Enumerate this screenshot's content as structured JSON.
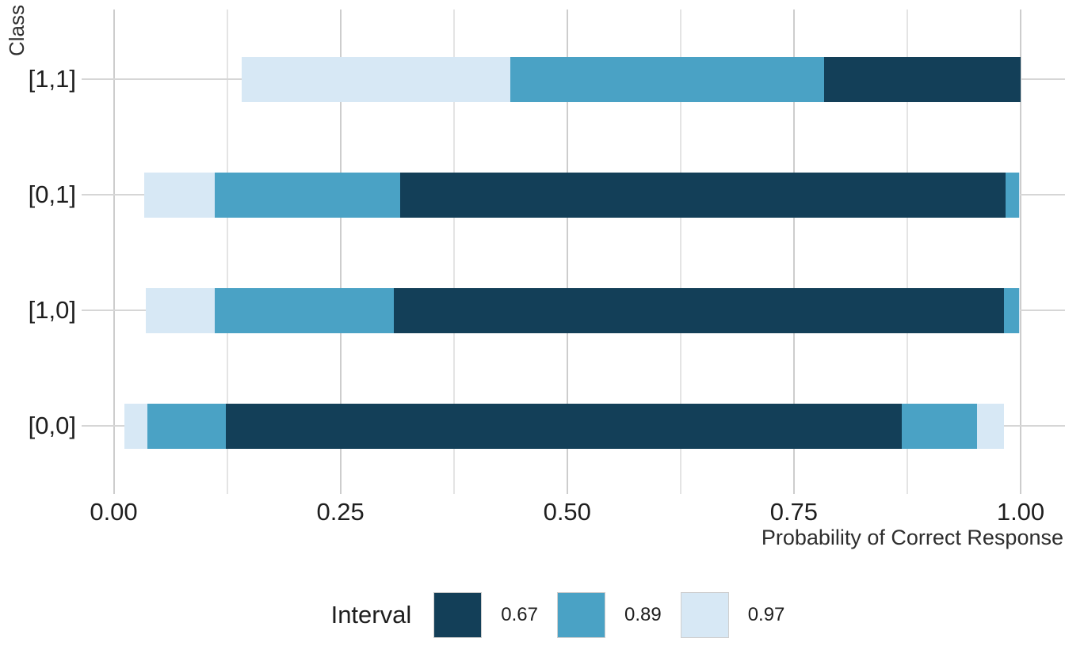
{
  "chart_data": {
    "type": "bar",
    "subtype": "nested-credible-intervals-horizontal",
    "title": "",
    "xlabel": "Probability of Correct Response",
    "ylabel": "Class",
    "xlim": [
      0,
      1
    ],
    "grid": "on",
    "x_major_ticks": [
      {
        "value": 0.0,
        "label": "0.00"
      },
      {
        "value": 0.25,
        "label": "0.25"
      },
      {
        "value": 0.5,
        "label": "0.50"
      },
      {
        "value": 0.75,
        "label": "0.75"
      },
      {
        "value": 1.0,
        "label": "1.00"
      }
    ],
    "x_minor_gridlines": [
      0.125,
      0.375,
      0.625,
      0.875
    ],
    "legend": {
      "title": "Interval",
      "position": "bottom",
      "entries": [
        {
          "label": "0.67"
        },
        {
          "label": "0.89"
        },
        {
          "label": "0.97"
        }
      ]
    },
    "interval_colors": {
      "0.67": "#133f58",
      "0.89": "#4aa2c5",
      "0.97": "#d7e8f5"
    },
    "classes": [
      {
        "label": "[1,1]",
        "intervals": [
          {
            "width": "0.97",
            "lower": 0.141,
            "upper": 1.0
          },
          {
            "width": "0.89",
            "lower": 0.437,
            "upper": 1.0
          },
          {
            "width": "0.67",
            "lower": 0.783,
            "upper": 1.0
          }
        ]
      },
      {
        "label": "[0,1]",
        "intervals": [
          {
            "width": "0.97",
            "lower": 0.034,
            "upper": 0.999
          },
          {
            "width": "0.89",
            "lower": 0.111,
            "upper": 0.998
          },
          {
            "width": "0.67",
            "lower": 0.316,
            "upper": 0.983
          }
        ]
      },
      {
        "label": "[1,0]",
        "intervals": [
          {
            "width": "0.97",
            "lower": 0.035,
            "upper": 0.999
          },
          {
            "width": "0.89",
            "lower": 0.111,
            "upper": 0.998
          },
          {
            "width": "0.67",
            "lower": 0.309,
            "upper": 0.982
          }
        ]
      },
      {
        "label": "[0,0]",
        "intervals": [
          {
            "width": "0.97",
            "lower": 0.012,
            "upper": 0.982
          },
          {
            "width": "0.89",
            "lower": 0.037,
            "upper": 0.952
          },
          {
            "width": "0.67",
            "lower": 0.124,
            "upper": 0.869
          }
        ]
      }
    ]
  }
}
